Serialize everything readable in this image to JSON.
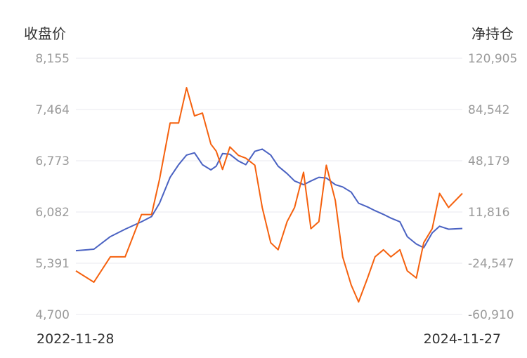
{
  "chart_data": {
    "type": "line",
    "y_left_title": "收盘价",
    "y_right_title": "净持仓",
    "y_left_ticks": [
      "8,155",
      "7,464",
      "6,773",
      "6,082",
      "5,391",
      "4,700"
    ],
    "y_right_ticks": [
      "120,905",
      "84,542",
      "48,179",
      "11,816",
      "-24,547",
      "-60,910"
    ],
    "y_left_range": [
      4700,
      8155
    ],
    "y_right_range": [
      -60910,
      120905
    ],
    "x_start_label": "2022-11-28",
    "x_end_label": "2024-11-27",
    "x": [
      "2022-11-28",
      "2023-01-01",
      "2023-02-01",
      "2023-03-01",
      "2023-04-01",
      "2023-04-20",
      "2023-05-05",
      "2023-05-25",
      "2023-06-10",
      "2023-06-25",
      "2023-07-10",
      "2023-07-25",
      "2023-08-10",
      "2023-08-20",
      "2023-09-01",
      "2023-09-15",
      "2023-10-01",
      "2023-10-15",
      "2023-11-01",
      "2023-11-15",
      "2023-12-01",
      "2023-12-15",
      "2024-01-01",
      "2024-01-15",
      "2024-02-01",
      "2024-02-15",
      "2024-03-01",
      "2024-03-15",
      "2024-04-01",
      "2024-04-15",
      "2024-05-01",
      "2024-05-15",
      "2024-06-01",
      "2024-06-15",
      "2024-07-01",
      "2024-07-15",
      "2024-08-01",
      "2024-08-15",
      "2024-09-01",
      "2024-09-15",
      "2024-10-01",
      "2024-10-15",
      "2024-11-01",
      "2024-11-27"
    ],
    "series": [
      {
        "color": "#4a62c2",
        "axis": "left",
        "values": [
          5560,
          5580,
          5750,
          5850,
          5950,
          6020,
          6200,
          6550,
          6720,
          6850,
          6880,
          6720,
          6650,
          6700,
          6870,
          6860,
          6770,
          6720,
          6900,
          6930,
          6850,
          6700,
          6600,
          6500,
          6450,
          6500,
          6550,
          6540,
          6450,
          6420,
          6350,
          6200,
          6150,
          6100,
          6050,
          6000,
          5950,
          5750,
          5650,
          5600,
          5800,
          5890,
          5850,
          5860
        ]
      },
      {
        "color": "#f5610e",
        "axis": "right",
        "values": [
          -30000,
          -38000,
          -20000,
          -20000,
          10000,
          10000,
          35000,
          75000,
          75000,
          100000,
          80000,
          82000,
          60000,
          55000,
          42000,
          58000,
          52000,
          50000,
          45000,
          15000,
          -10000,
          -15000,
          5000,
          15000,
          40000,
          0,
          5000,
          45000,
          20000,
          -20000,
          -40000,
          -52000,
          -35000,
          -20000,
          -15000,
          -20000,
          -15000,
          -30000,
          -35000,
          -10000,
          0,
          25000,
          15000,
          25000
        ]
      }
    ]
  }
}
